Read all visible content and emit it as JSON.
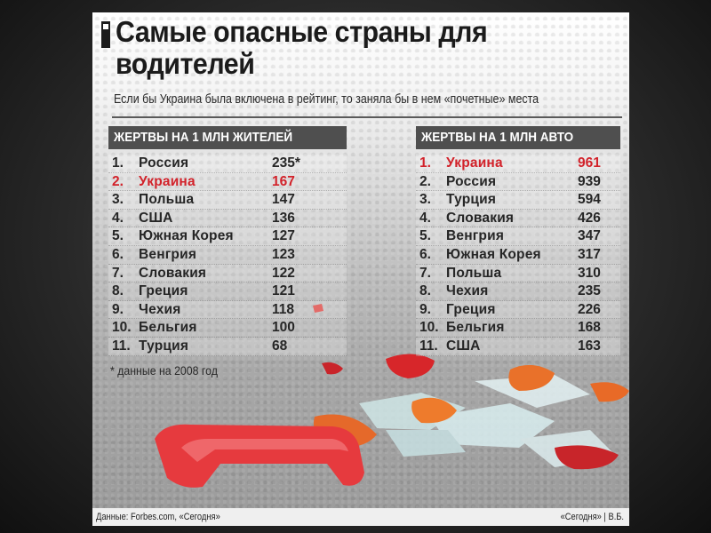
{
  "title": "Самые опасные страны для водителей",
  "subtitle": "Если бы Украина была включена в рейтинг, то заняла бы в нем «почетные» места",
  "left_table": {
    "header": "ЖЕРТВЫ НА 1 МЛН ЖИТЕЛЕЙ",
    "rows": [
      {
        "rank": "1.",
        "country": "Россия",
        "value": "235*",
        "highlight": false
      },
      {
        "rank": "2.",
        "country": "Украина",
        "value": "167",
        "highlight": true
      },
      {
        "rank": "3.",
        "country": "Польша",
        "value": "147",
        "highlight": false
      },
      {
        "rank": "4.",
        "country": "США",
        "value": "136",
        "highlight": false
      },
      {
        "rank": "5.",
        "country": "Южная Корея",
        "value": "127",
        "highlight": false
      },
      {
        "rank": "6.",
        "country": "Венгрия",
        "value": "123",
        "highlight": false
      },
      {
        "rank": "7.",
        "country": "Словакия",
        "value": "122",
        "highlight": false
      },
      {
        "rank": "8.",
        "country": "Греция",
        "value": "121",
        "highlight": false
      },
      {
        "rank": "9.",
        "country": "Чехия",
        "value": "118",
        "highlight": false
      },
      {
        "rank": "10.",
        "country": "Бельгия",
        "value": "100",
        "highlight": false
      },
      {
        "rank": "11.",
        "country": "Турция",
        "value": "68",
        "highlight": false
      }
    ]
  },
  "right_table": {
    "header": "ЖЕРТВЫ НА 1 МЛН АВТО",
    "rows": [
      {
        "rank": "1.",
        "country": "Украина",
        "value": "961",
        "highlight": true
      },
      {
        "rank": "2.",
        "country": "Россия",
        "value": "939",
        "highlight": false
      },
      {
        "rank": "3.",
        "country": "Турция",
        "value": "594",
        "highlight": false
      },
      {
        "rank": "4.",
        "country": "Словакия",
        "value": "426",
        "highlight": false
      },
      {
        "rank": "5.",
        "country": "Венгрия",
        "value": "347",
        "highlight": false
      },
      {
        "rank": "6.",
        "country": "Южная Корея",
        "value": "317",
        "highlight": false
      },
      {
        "rank": "7.",
        "country": "Польша",
        "value": "310",
        "highlight": false
      },
      {
        "rank": "8.",
        "country": "Чехия",
        "value": "235",
        "highlight": false
      },
      {
        "rank": "9.",
        "country": "Греция",
        "value": "226",
        "highlight": false
      },
      {
        "rank": "10.",
        "country": "Бельгия",
        "value": "168",
        "highlight": false
      },
      {
        "rank": "11.",
        "country": "США",
        "value": "163",
        "highlight": false
      }
    ]
  },
  "footnote": "* данные на 2008 год",
  "footer": {
    "source": "Данные: Forbes.com, «Сегодня»",
    "credit": "«Сегодня» | В.Б."
  },
  "colors": {
    "highlight": "#d2222a",
    "header_bg": "#4f4f4f",
    "text": "#262626"
  }
}
